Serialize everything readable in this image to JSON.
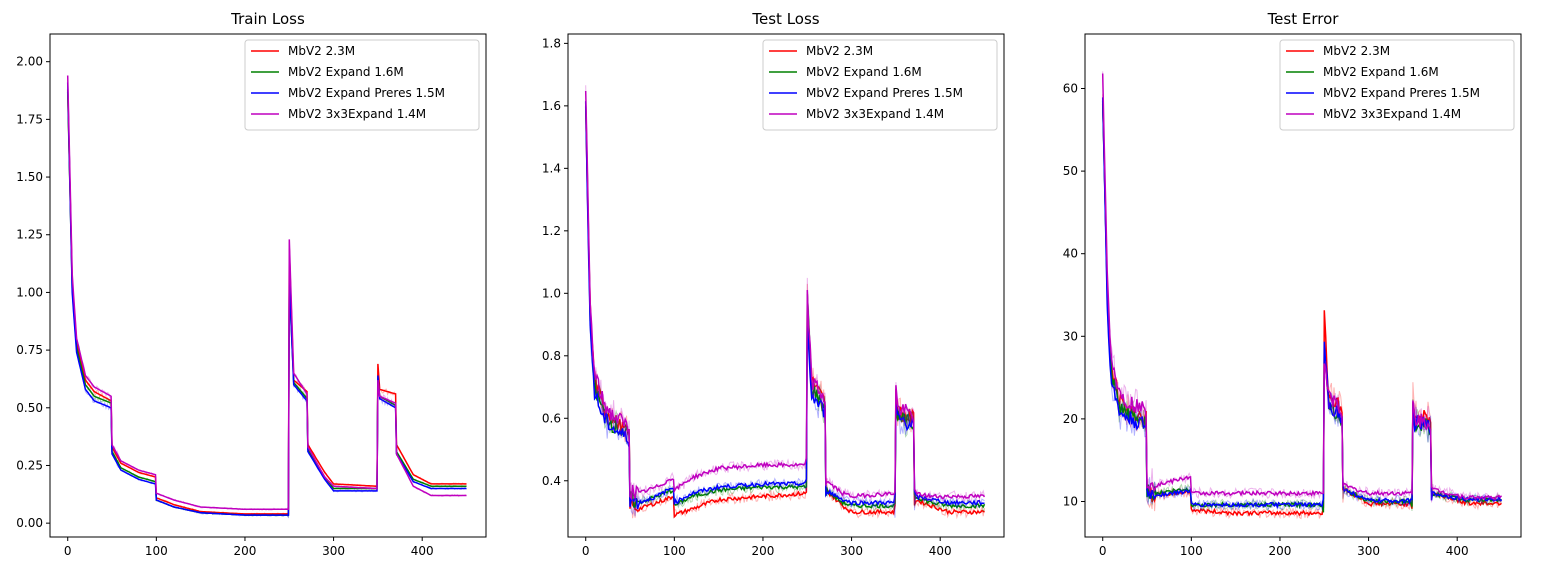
{
  "colors": {
    "MbV2 2.3M": "#ff0000",
    "MbV2 Expand 1.6M": "#008000",
    "MbV2 Expand Preres 1.5M": "#0000ff",
    "MbV2 3x3Expand 1.4M": "#bf00bf"
  },
  "chart_data": [
    {
      "type": "line",
      "title": "Train Loss",
      "xlim": [
        -20,
        472
      ],
      "ylim": [
        -0.06,
        2.12
      ],
      "xticks": [
        0,
        100,
        200,
        300,
        400
      ],
      "yticks": [
        0.0,
        0.25,
        0.5,
        0.75,
        1.0,
        1.25,
        1.5,
        1.75,
        2.0
      ],
      "ytick_labels": [
        "0.00",
        "0.25",
        "0.50",
        "0.75",
        "1.00",
        "1.25",
        "1.50",
        "1.75",
        "2.00"
      ],
      "legend": "top-right",
      "series": [
        {
          "name": "MbV2 2.3M",
          "x": [
            0,
            5,
            10,
            20,
            30,
            49,
            50,
            60,
            80,
            99,
            100,
            120,
            150,
            200,
            249,
            250,
            255,
            270,
            271,
            290,
            300,
            349,
            350,
            352,
            370,
            371,
            390,
            410,
            450
          ],
          "y": [
            1.88,
            1.05,
            0.78,
            0.62,
            0.57,
            0.53,
            0.33,
            0.26,
            0.22,
            0.2,
            0.11,
            0.08,
            0.05,
            0.04,
            0.04,
            1.19,
            0.62,
            0.57,
            0.34,
            0.22,
            0.17,
            0.16,
            0.69,
            0.58,
            0.56,
            0.34,
            0.21,
            0.17,
            0.17
          ]
        },
        {
          "name": "MbV2 Expand 1.6M",
          "x": [
            0,
            5,
            10,
            20,
            30,
            49,
            50,
            60,
            80,
            99,
            100,
            120,
            150,
            200,
            249,
            250,
            255,
            270,
            271,
            290,
            300,
            349,
            350,
            352,
            370,
            371,
            390,
            410,
            450
          ],
          "y": [
            1.87,
            1.02,
            0.76,
            0.6,
            0.55,
            0.52,
            0.31,
            0.24,
            0.2,
            0.18,
            0.1,
            0.07,
            0.045,
            0.035,
            0.035,
            1.05,
            0.61,
            0.54,
            0.32,
            0.2,
            0.15,
            0.15,
            0.63,
            0.55,
            0.51,
            0.31,
            0.19,
            0.16,
            0.16
          ]
        },
        {
          "name": "MbV2 Expand Preres 1.5M",
          "x": [
            0,
            5,
            10,
            20,
            30,
            49,
            50,
            60,
            80,
            99,
            100,
            120,
            150,
            200,
            249,
            250,
            255,
            270,
            271,
            290,
            300,
            349,
            350,
            352,
            370,
            371,
            390,
            410,
            450
          ],
          "y": [
            1.91,
            1.0,
            0.74,
            0.58,
            0.53,
            0.5,
            0.3,
            0.23,
            0.19,
            0.17,
            0.1,
            0.07,
            0.045,
            0.035,
            0.035,
            1.07,
            0.6,
            0.53,
            0.31,
            0.19,
            0.14,
            0.14,
            0.64,
            0.54,
            0.5,
            0.3,
            0.18,
            0.15,
            0.15
          ]
        },
        {
          "name": "MbV2 3x3Expand 1.4M",
          "x": [
            0,
            5,
            10,
            20,
            30,
            49,
            50,
            60,
            80,
            99,
            100,
            120,
            150,
            200,
            249,
            250,
            255,
            270,
            271,
            290,
            300,
            349,
            350,
            352,
            370,
            371,
            390,
            410,
            450
          ],
          "y": [
            1.94,
            1.08,
            0.8,
            0.64,
            0.59,
            0.55,
            0.34,
            0.27,
            0.23,
            0.21,
            0.13,
            0.1,
            0.07,
            0.06,
            0.06,
            1.23,
            0.65,
            0.56,
            0.33,
            0.2,
            0.16,
            0.15,
            0.62,
            0.55,
            0.52,
            0.3,
            0.16,
            0.12,
            0.12
          ]
        }
      ]
    },
    {
      "type": "line",
      "title": "Test Loss",
      "xlim": [
        -20,
        472
      ],
      "ylim": [
        0.22,
        1.83
      ],
      "xticks": [
        0,
        100,
        200,
        300,
        400
      ],
      "yticks": [
        0.4,
        0.6,
        0.8,
        1.0,
        1.2,
        1.4,
        1.6,
        1.8
      ],
      "ytick_labels": [
        "0.4",
        "0.6",
        "0.8",
        "1.0",
        "1.2",
        "1.4",
        "1.6",
        "1.8"
      ],
      "legend": "top-right",
      "series": [
        {
          "name": "MbV2 2.3M",
          "x": [
            0,
            5,
            10,
            20,
            30,
            40,
            49,
            50,
            60,
            80,
            99,
            100,
            120,
            150,
            200,
            249,
            250,
            255,
            270,
            271,
            290,
            300,
            349,
            350,
            352,
            370,
            371,
            390,
            410,
            450
          ],
          "y": [
            1.58,
            0.95,
            0.72,
            0.64,
            0.6,
            0.57,
            0.55,
            0.33,
            0.31,
            0.33,
            0.35,
            0.29,
            0.31,
            0.34,
            0.35,
            0.36,
            0.98,
            0.72,
            0.65,
            0.37,
            0.32,
            0.3,
            0.3,
            0.7,
            0.62,
            0.6,
            0.34,
            0.32,
            0.3,
            0.3
          ]
        },
        {
          "name": "MbV2 Expand 1.6M",
          "x": [
            0,
            5,
            10,
            20,
            30,
            40,
            49,
            50,
            60,
            80,
            99,
            100,
            120,
            150,
            200,
            249,
            250,
            255,
            270,
            271,
            290,
            300,
            349,
            350,
            352,
            370,
            371,
            390,
            410,
            450
          ],
          "y": [
            1.6,
            0.92,
            0.7,
            0.62,
            0.58,
            0.56,
            0.54,
            0.34,
            0.33,
            0.35,
            0.37,
            0.32,
            0.35,
            0.37,
            0.38,
            0.38,
            0.99,
            0.7,
            0.63,
            0.37,
            0.33,
            0.32,
            0.32,
            0.66,
            0.6,
            0.58,
            0.35,
            0.33,
            0.32,
            0.32
          ]
        },
        {
          "name": "MbV2 Expand Preres 1.5M",
          "x": [
            0,
            5,
            10,
            20,
            30,
            40,
            49,
            50,
            60,
            80,
            99,
            100,
            120,
            150,
            200,
            249,
            250,
            255,
            270,
            271,
            290,
            300,
            349,
            350,
            352,
            370,
            371,
            390,
            410,
            450
          ],
          "y": [
            1.6,
            0.9,
            0.68,
            0.6,
            0.57,
            0.55,
            0.53,
            0.34,
            0.33,
            0.35,
            0.38,
            0.33,
            0.36,
            0.38,
            0.39,
            0.39,
            0.9,
            0.67,
            0.62,
            0.37,
            0.34,
            0.33,
            0.33,
            0.64,
            0.6,
            0.58,
            0.35,
            0.34,
            0.33,
            0.33
          ]
        },
        {
          "name": "MbV2 3x3Expand 1.4M",
          "x": [
            0,
            5,
            10,
            20,
            30,
            40,
            49,
            50,
            60,
            80,
            99,
            100,
            120,
            150,
            200,
            249,
            250,
            255,
            270,
            271,
            290,
            300,
            349,
            350,
            352,
            370,
            371,
            390,
            410,
            450
          ],
          "y": [
            1.65,
            0.96,
            0.74,
            0.65,
            0.61,
            0.59,
            0.57,
            0.37,
            0.36,
            0.38,
            0.41,
            0.37,
            0.41,
            0.44,
            0.45,
            0.45,
            1.0,
            0.72,
            0.66,
            0.4,
            0.36,
            0.35,
            0.36,
            0.7,
            0.63,
            0.61,
            0.36,
            0.35,
            0.35,
            0.35
          ]
        }
      ]
    },
    {
      "type": "line",
      "title": "Test Error",
      "xlim": [
        -20,
        472
      ],
      "ylim": [
        5.7,
        66.6
      ],
      "xticks": [
        0,
        100,
        200,
        300,
        400
      ],
      "yticks": [
        10,
        20,
        30,
        40,
        50,
        60
      ],
      "ytick_labels": [
        "10",
        "20",
        "30",
        "40",
        "50",
        "60"
      ],
      "legend": "top-right",
      "series": [
        {
          "name": "MbV2 2.3M",
          "x": [
            0,
            5,
            10,
            20,
            30,
            40,
            49,
            50,
            60,
            80,
            99,
            100,
            120,
            150,
            200,
            249,
            250,
            255,
            270,
            271,
            290,
            300,
            349,
            350,
            352,
            370,
            371,
            390,
            410,
            450
          ],
          "y": [
            58,
            36,
            26,
            22,
            21,
            20.5,
            20,
            11,
            10.8,
            11,
            11.2,
            9,
            8.8,
            8.6,
            8.6,
            8.6,
            33,
            23,
            21,
            11.5,
            10.5,
            9.7,
            9.7,
            23,
            20.5,
            20,
            11,
            10.5,
            9.8,
            9.8
          ]
        },
        {
          "name": "MbV2 Expand 1.6M",
          "x": [
            0,
            5,
            10,
            20,
            30,
            40,
            49,
            50,
            60,
            80,
            99,
            100,
            120,
            150,
            200,
            249,
            250,
            255,
            270,
            271,
            290,
            300,
            349,
            350,
            352,
            370,
            371,
            390,
            410,
            450
          ],
          "y": [
            59,
            35,
            25,
            21,
            20.5,
            20,
            19.5,
            11.2,
            11,
            11.3,
            11.5,
            9.6,
            9.6,
            9.6,
            9.6,
            9.6,
            29,
            22,
            20,
            11.5,
            10.6,
            10,
            10,
            21,
            19.5,
            19,
            11,
            10.6,
            10.2,
            10.2
          ]
        },
        {
          "name": "MbV2 Expand Preres 1.5M",
          "x": [
            0,
            5,
            10,
            20,
            30,
            40,
            49,
            50,
            60,
            80,
            99,
            100,
            120,
            150,
            200,
            249,
            250,
            255,
            270,
            271,
            290,
            300,
            349,
            350,
            352,
            370,
            371,
            390,
            410,
            450
          ],
          "y": [
            59,
            34,
            24,
            20.5,
            20,
            19.5,
            19,
            11,
            10.8,
            11,
            11.3,
            9.6,
            9.6,
            9.6,
            9.6,
            9.6,
            29,
            22,
            20,
            11.5,
            10.6,
            10.1,
            10.1,
            21,
            19.5,
            19,
            11,
            10.6,
            10.3,
            10.3
          ]
        },
        {
          "name": "MbV2 3x3Expand 1.4M",
          "x": [
            0,
            5,
            10,
            20,
            30,
            40,
            49,
            50,
            60,
            80,
            99,
            100,
            120,
            150,
            200,
            249,
            250,
            255,
            270,
            271,
            290,
            300,
            349,
            350,
            352,
            370,
            371,
            390,
            410,
            450
          ],
          "y": [
            61,
            37,
            27,
            23,
            22,
            21.5,
            21,
            12.5,
            12,
            12.5,
            13,
            11,
            11,
            11,
            11,
            11,
            27,
            23,
            21,
            12,
            11.3,
            11,
            11,
            22,
            20,
            19.5,
            11.5,
            11,
            10.5,
            10.5
          ]
        }
      ]
    }
  ]
}
